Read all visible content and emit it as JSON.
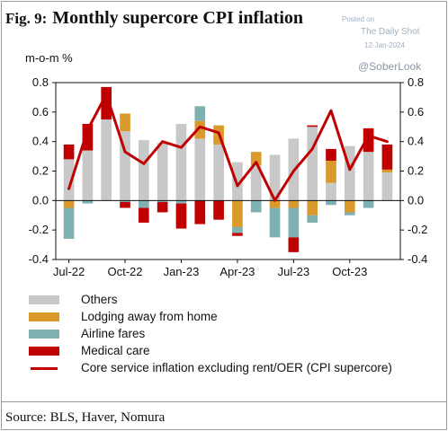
{
  "header": {
    "fig_label": "Fig. 9:",
    "title": "Monthly supercore CPI inflation"
  },
  "watermark": {
    "posted_on": "Posted on",
    "site": "The Daily Shot",
    "date": "12-Jan-2024",
    "handle": "@SoberLook"
  },
  "footer": {
    "source": "Source: BLS, Haver, Nomura"
  },
  "chart_data": {
    "type": "bar",
    "stacked": true,
    "ylabel": "m-o-m %",
    "ylim": [
      -0.4,
      0.8
    ],
    "yticks": [
      "0.8",
      "0.6",
      "0.4",
      "0.2",
      "0.0",
      "-0.2",
      "-0.4"
    ],
    "ytick_values": [
      0.8,
      0.6,
      0.4,
      0.2,
      0.0,
      -0.2,
      -0.4
    ],
    "xtick_labels": [
      {
        "label": "Jul-22",
        "index": 0
      },
      {
        "label": "Oct-22",
        "index": 3
      },
      {
        "label": "Jan-23",
        "index": 6
      },
      {
        "label": "Apr-23",
        "index": 9
      },
      {
        "label": "Jul-23",
        "index": 12
      },
      {
        "label": "Oct-23",
        "index": 15
      }
    ],
    "categories": [
      "Jul-22",
      "Aug-22",
      "Sep-22",
      "Oct-22",
      "Nov-22",
      "Dec-22",
      "Jan-23",
      "Feb-23",
      "Mar-23",
      "Apr-23",
      "May-23",
      "Jun-23",
      "Jul-23",
      "Aug-23",
      "Sep-23",
      "Oct-23",
      "Nov-23",
      "Dec-23"
    ],
    "series": [
      {
        "name": "Others",
        "kind": "bar",
        "color": "#c8c8c8",
        "values": [
          0.28,
          0.34,
          0.55,
          0.47,
          0.41,
          0.39,
          0.52,
          0.42,
          0.38,
          0.26,
          0.24,
          0.31,
          0.42,
          0.5,
          0.12,
          0.37,
          0.33,
          0.19
        ]
      },
      {
        "name": "Lodging away from home",
        "kind": "bar",
        "color": "#d99a2b",
        "values": [
          -0.05,
          0.0,
          0.0,
          0.12,
          0.0,
          0.0,
          0.0,
          0.12,
          0.13,
          -0.18,
          0.09,
          -0.05,
          -0.05,
          -0.1,
          0.15,
          -0.08,
          0.0,
          0.02
        ]
      },
      {
        "name": "Airline fares",
        "kind": "bar",
        "color": "#7fb1b1",
        "values": [
          -0.21,
          -0.02,
          0.0,
          -0.01,
          -0.05,
          -0.01,
          -0.02,
          0.1,
          0.0,
          -0.04,
          -0.08,
          -0.2,
          -0.2,
          -0.05,
          -0.03,
          -0.02,
          -0.05,
          0.0
        ]
      },
      {
        "name": "Medical care",
        "kind": "bar",
        "color": "#c00000",
        "values": [
          0.1,
          0.18,
          0.22,
          -0.04,
          -0.1,
          -0.07,
          -0.17,
          -0.16,
          -0.13,
          -0.02,
          0.0,
          0.0,
          -0.1,
          0.01,
          0.08,
          0.0,
          0.16,
          0.17
        ]
      },
      {
        "name": "Core service inflation excluding rent/OER (CPI supercore)",
        "kind": "line",
        "color": "#c00000",
        "values": [
          0.08,
          0.48,
          0.72,
          0.33,
          0.25,
          0.4,
          0.36,
          0.5,
          0.46,
          0.1,
          0.26,
          0.0,
          0.2,
          0.35,
          0.61,
          0.21,
          0.44,
          0.4
        ]
      }
    ],
    "legend_position": "bottom-left",
    "grid": false
  }
}
